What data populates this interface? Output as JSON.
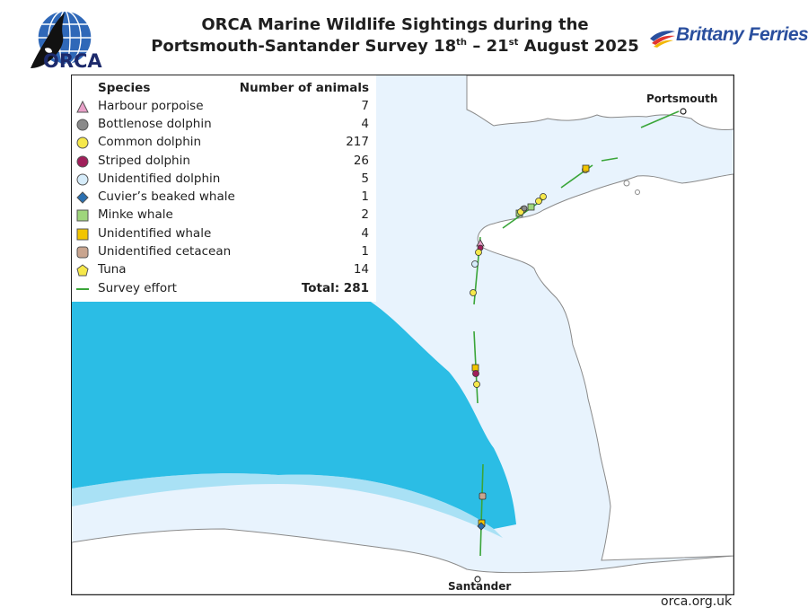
{
  "header": {
    "logo_text": "ORCA",
    "title_line1": "ORCA Marine Wildlife Sightings during the",
    "title_line2_pre": "Portsmouth-Santander Survey 18",
    "title_sup1": "th",
    "title_mid": " – 21",
    "title_sup2": "st",
    "title_post": " August 2025",
    "partner_logo_text": "Brittany Ferries"
  },
  "map": {
    "ports": {
      "north": "Portsmouth",
      "south": "Santander"
    },
    "colors": {
      "deep_sea": "#29bde4",
      "shelf_sea": "#e8f3fd",
      "land": "#ffffff",
      "coast": "#8a8a8a",
      "survey_line": "#3aa539"
    }
  },
  "legend": {
    "header_species": "Species",
    "header_count": "Number of animals",
    "items": [
      {
        "name": "Harbour porpoise",
        "count": "7",
        "icon": "triangle-icon",
        "color": "#e8a0c8"
      },
      {
        "name": "Bottlenose dolphin",
        "count": "4",
        "icon": "circle-icon",
        "color": "#8a8a8a"
      },
      {
        "name": "Common dolphin",
        "count": "217",
        "icon": "circle-icon",
        "color": "#f6e84a"
      },
      {
        "name": "Striped dolphin",
        "count": "26",
        "icon": "circle-icon",
        "color": "#a01f5a"
      },
      {
        "name": "Unidentified dolphin",
        "count": "5",
        "icon": "circle-icon",
        "color": "#d6ecfa"
      },
      {
        "name": "Cuvier’s beaked whale",
        "count": "1",
        "icon": "diamond-icon",
        "color": "#2a6fb0"
      },
      {
        "name": "Minke whale",
        "count": "2",
        "icon": "square-icon",
        "color": "#9fd67c"
      },
      {
        "name": "Unidentified whale",
        "count": "4",
        "icon": "square-icon",
        "color": "#f2c500"
      },
      {
        "name": "Unidentified cetacean",
        "count": "1",
        "icon": "rounded-square-icon",
        "color": "#c9a58f"
      },
      {
        "name": "Tuna",
        "count": "14",
        "icon": "pentagon-icon",
        "color": "#f6e84a"
      }
    ],
    "effort_label": "Survey effort",
    "total_label": "Total: 281"
  },
  "footer": {
    "url": "orca.org.uk"
  }
}
